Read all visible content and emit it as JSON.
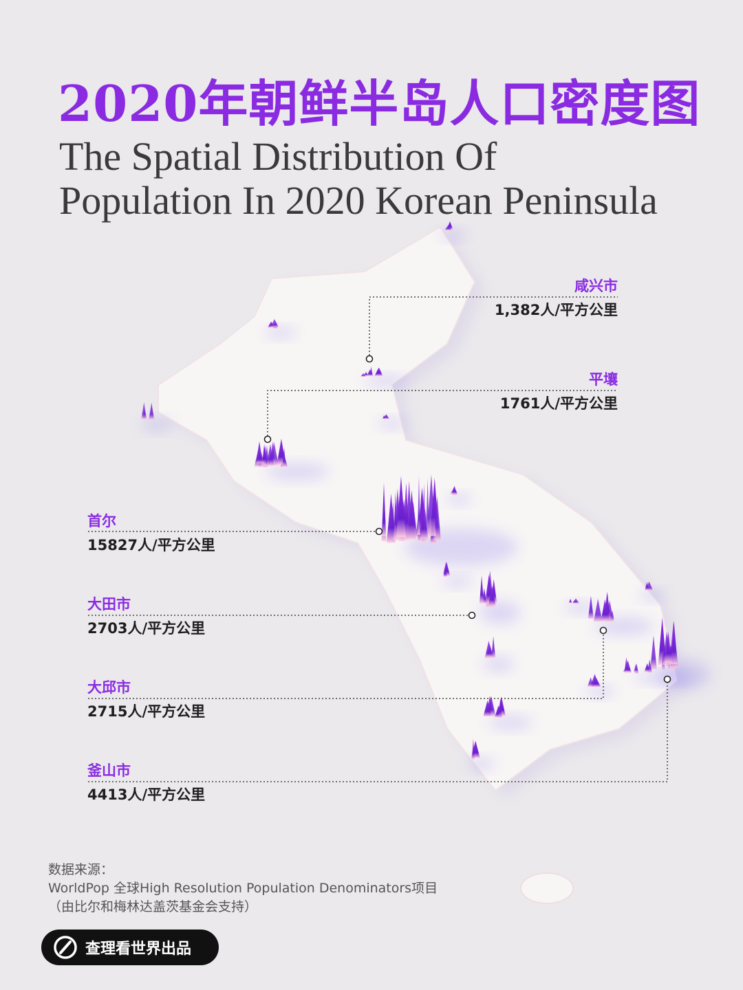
{
  "title_cn": "2020年朝鲜半岛人口密度图",
  "title_en": [
    "The Spatial Distribution Of",
    "Population In 2020 Korean Peninsula"
  ],
  "colors": {
    "accent": "#8a2be2",
    "background": "#ebe9ec",
    "land": "#f7f3f4",
    "peak": "#7a1fe0"
  },
  "labels": [
    {
      "id": "hamhung",
      "city": "咸兴市",
      "value": "1,382人/平方公里"
    },
    {
      "id": "pyongyang",
      "city": "平壤",
      "value": "1761人/平方公里"
    },
    {
      "id": "seoul",
      "city": "首尔",
      "value": "15827人/平方公里"
    },
    {
      "id": "daejeon",
      "city": "大田市",
      "value": "2703人/平方公里"
    },
    {
      "id": "daegu",
      "city": "大邱市",
      "value": "2715人/平方公里"
    },
    {
      "id": "busan",
      "city": "釜山市",
      "value": "4413人/平方公里"
    }
  ],
  "source": {
    "heading": "数据来源：",
    "line1": "WorldPop 全球High Resolution Population Denominators项目",
    "line2": "（由比尔和梅林达盖茨基金会支持）"
  },
  "brand": {
    "text": "查理看世界出品",
    "icon": "brand-logo-icon"
  }
}
